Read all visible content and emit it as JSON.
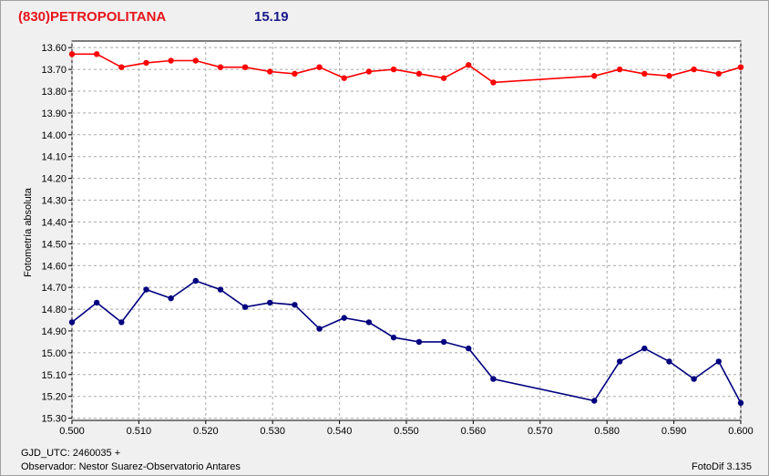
{
  "header": {
    "object_name": "(830)PETROPOLITANA",
    "magnitude": "15.19"
  },
  "footer": {
    "gjd_label": "GJD_UTC: 2460035 +",
    "observer": "Observador: Nestor Suarez-Observatorio Antares",
    "software": "FotoDif 3.135"
  },
  "colors": {
    "series_red": "#ff0000",
    "series_blue": "#00007f",
    "grid": "#a9a9a9"
  },
  "chart_data": {
    "type": "line",
    "ylabel": "Fotometría absoluta",
    "xlabel": "",
    "xlim": [
      0.5,
      0.6
    ],
    "ylim": [
      13.57,
      15.31
    ],
    "y_inverted": true,
    "grid": true,
    "x_ticks": [
      "0.500",
      "0.510",
      "0.520",
      "0.530",
      "0.540",
      "0.550",
      "0.560",
      "0.570",
      "0.580",
      "0.590",
      "0.600"
    ],
    "y_ticks": [
      "13.60",
      "13.70",
      "13.80",
      "13.90",
      "14.00",
      "14.10",
      "14.20",
      "14.30",
      "14.40",
      "14.50",
      "14.60",
      "14.70",
      "14.80",
      "14.90",
      "15.00",
      "15.10",
      "15.20",
      "15.30"
    ],
    "series": [
      {
        "color": "#ff0000",
        "x": [
          0.5,
          0.5037,
          0.5074,
          0.5111,
          0.5148,
          0.5185,
          0.5222,
          0.5259,
          0.5296,
          0.5333,
          0.537,
          0.5407,
          0.5444,
          0.5481,
          0.5519,
          0.5556,
          0.5593,
          0.563,
          0.5781,
          0.5819,
          0.5856,
          0.5893,
          0.593,
          0.5967,
          0.6
        ],
        "y": [
          13.63,
          13.63,
          13.69,
          13.67,
          13.66,
          13.66,
          13.69,
          13.69,
          13.71,
          13.72,
          13.69,
          13.74,
          13.71,
          13.7,
          13.72,
          13.74,
          13.68,
          13.76,
          13.73,
          13.7,
          13.72,
          13.73,
          13.7,
          13.72,
          13.69
        ]
      },
      {
        "color": "#00007f",
        "x": [
          0.5,
          0.5037,
          0.5074,
          0.5111,
          0.5148,
          0.5185,
          0.5222,
          0.5259,
          0.5296,
          0.5333,
          0.537,
          0.5407,
          0.5444,
          0.5481,
          0.5519,
          0.5556,
          0.5593,
          0.563,
          0.5781,
          0.5819,
          0.5856,
          0.5893,
          0.593,
          0.5967,
          0.6
        ],
        "y": [
          14.86,
          14.77,
          14.86,
          14.71,
          14.75,
          14.67,
          14.71,
          14.79,
          14.77,
          14.78,
          14.89,
          14.84,
          14.86,
          14.93,
          14.95,
          14.95,
          14.98,
          15.12,
          15.22,
          15.04,
          14.98,
          15.04,
          15.12,
          15.04,
          15.23
        ]
      }
    ]
  }
}
